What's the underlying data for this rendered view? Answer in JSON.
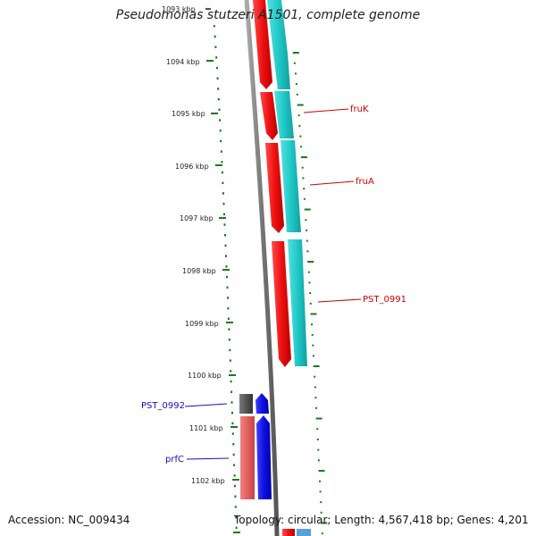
{
  "title": "Pseudomonas stutzeri A1501, complete genome",
  "footer": {
    "accession": "Accession: NC_009434",
    "topology": "Topology: circular; Length: 4,567,418 bp; Genes: 4,201"
  },
  "ticks": [
    "1093 kbp",
    "1094 kbp",
    "1095 kbp",
    "1096 kbp",
    "1097 kbp",
    "1098 kbp",
    "1099 kbp",
    "1100 kbp",
    "1101 kbp",
    "1102 kbp"
  ],
  "genes": {
    "fruK": "fruK",
    "fruA": "fruA",
    "pst0991": "PST_0991",
    "pst0992": "PST_0992",
    "prfC": "prfC"
  },
  "colors": {
    "red": "#ee1111",
    "cyan": "#22cccc",
    "blue": "#1010dd",
    "pink": "#e06060",
    "gray": "#555555",
    "tick": "#1a7a1a",
    "label_red": "#cc0000",
    "label_blue": "#1010bb"
  }
}
